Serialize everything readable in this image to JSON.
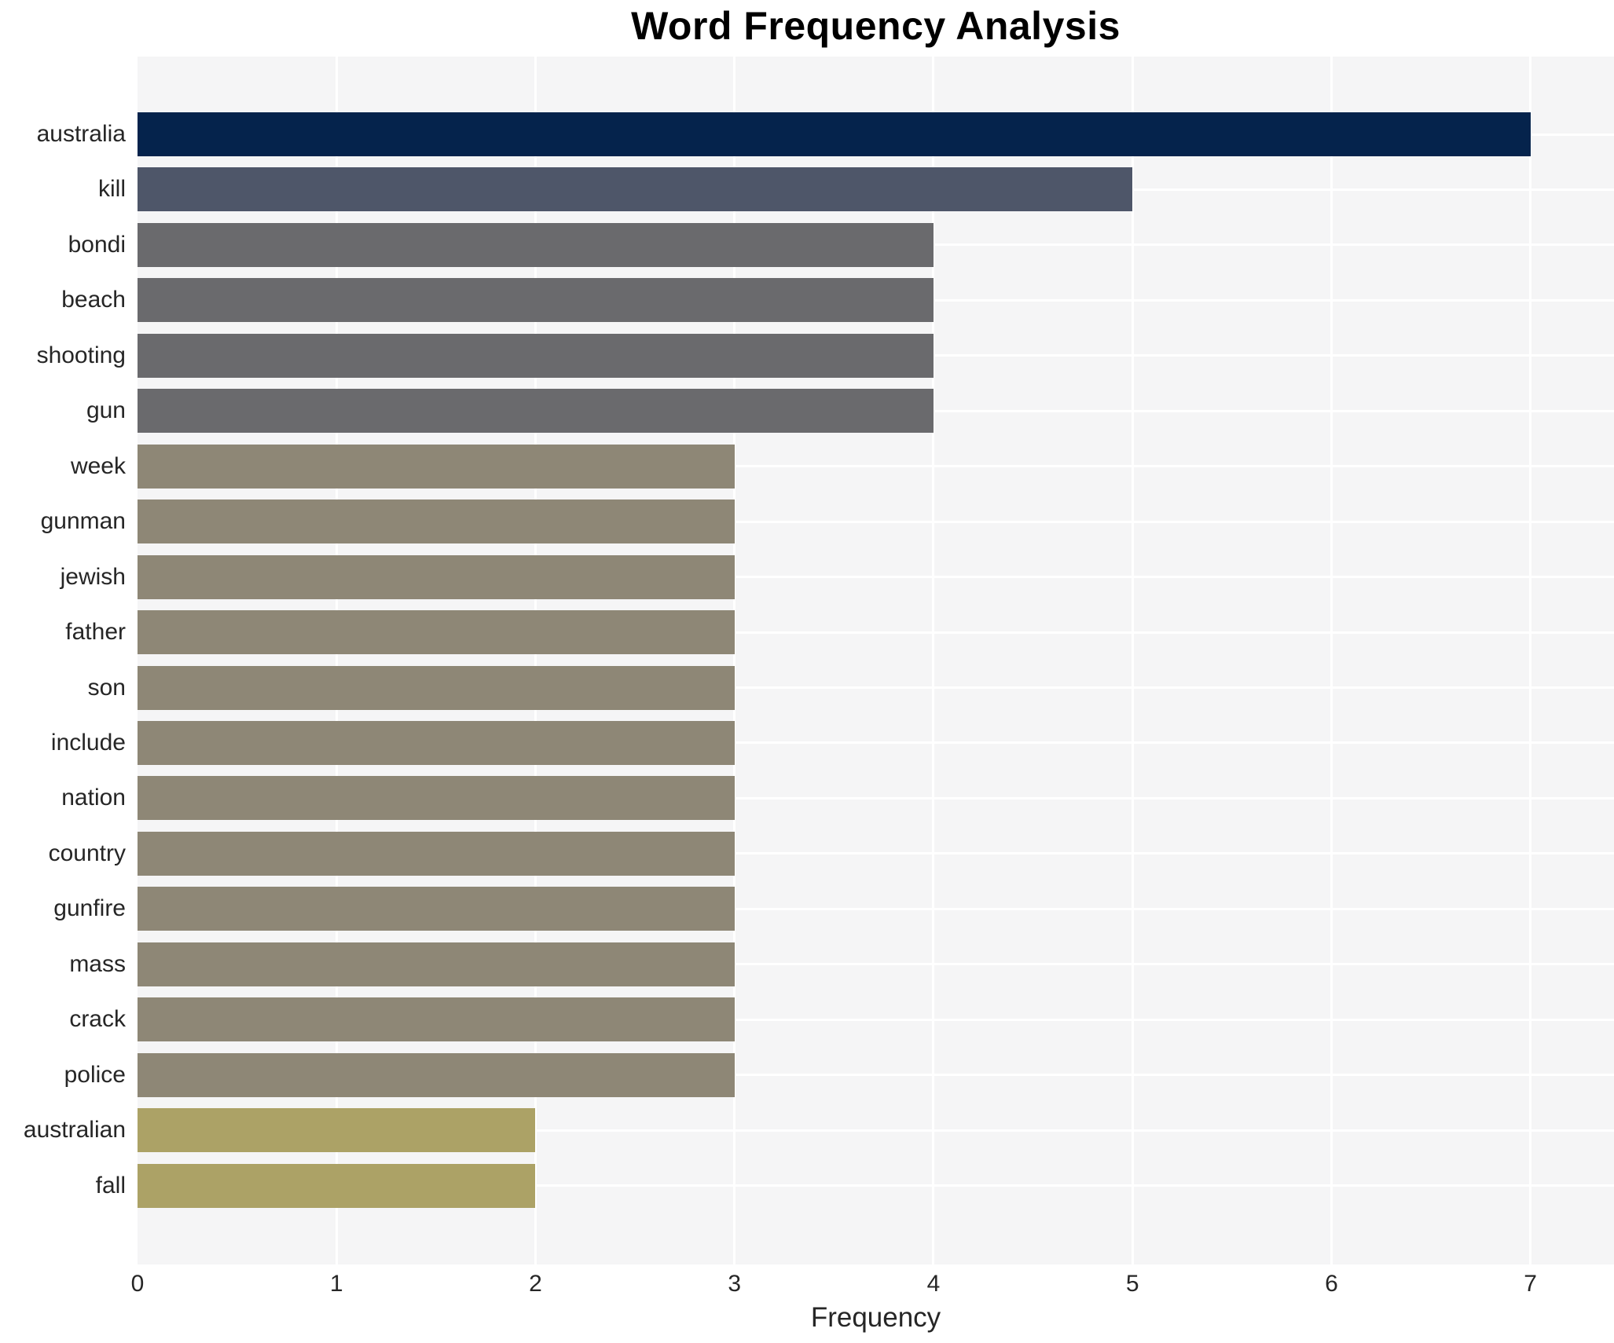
{
  "title": "Word Frequency Analysis",
  "chart_data": {
    "type": "bar",
    "orientation": "horizontal",
    "title": "Word Frequency Analysis",
    "xlabel": "Frequency",
    "ylabel": "",
    "categories": [
      "australia",
      "kill",
      "bondi",
      "beach",
      "shooting",
      "gun",
      "week",
      "gunman",
      "jewish",
      "father",
      "son",
      "include",
      "nation",
      "country",
      "gunfire",
      "mass",
      "crack",
      "police",
      "australian",
      "fall"
    ],
    "values": [
      7,
      5,
      4,
      4,
      4,
      4,
      3,
      3,
      3,
      3,
      3,
      3,
      3,
      3,
      3,
      3,
      3,
      3,
      2,
      2
    ],
    "x_ticks": [
      "0",
      "1",
      "2",
      "3",
      "4",
      "5",
      "6",
      "7"
    ],
    "xlim": [
      0,
      7.42
    ],
    "grid": "white gridlines (vertical at each integer tick, horizontal at each category center) on light gray panel",
    "legend": "none",
    "colors_by_value": {
      "7": "#05234c",
      "5": "#4e5669",
      "4": "#6a6a6d",
      "3": "#8e8776",
      "2": "#aca266"
    },
    "panel_background": "#f5f5f6",
    "figure_background": "#ffffff",
    "tick_label_color": "#262626",
    "title_color": "#000000"
  }
}
